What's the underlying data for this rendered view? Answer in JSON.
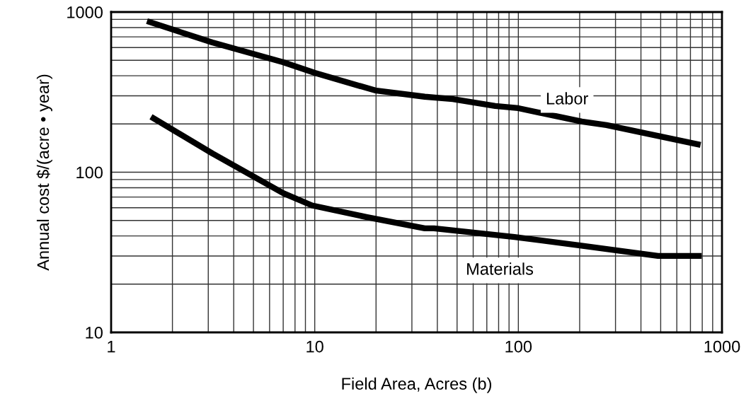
{
  "chart_data": {
    "type": "line",
    "xlabel": "Field Area, Acres (b)",
    "ylabel": "Annual cost $/(acre • year)",
    "log": "xy",
    "grid": true,
    "marker": "none",
    "line_style": "solid",
    "xlim": [
      1,
      1000
    ],
    "xticks": [
      1,
      10,
      100,
      1000
    ],
    "ylim": [
      10,
      1000
    ],
    "yticks": [
      10,
      100,
      1000
    ],
    "series": [
      {
        "name": "Labor",
        "color": "#000000",
        "x": [
          1.5,
          3.14,
          7.0,
          10,
          19.8,
          34.7,
          47.7,
          77,
          100,
          205,
          271,
          785
        ],
        "values": [
          877,
          646,
          486,
          417,
          324,
          296,
          286,
          259,
          251,
          207,
          197,
          148
        ]
      },
      {
        "name": "Materials",
        "color": "#000000",
        "x": [
          1.57,
          3.14,
          7.0,
          9.7,
          17.9,
          34.7,
          38.5,
          95.7,
          201,
          485,
          795
        ],
        "values": [
          222,
          131,
          74,
          62,
          52.5,
          44.6,
          44.6,
          39.4,
          34.9,
          30,
          30
        ]
      }
    ],
    "legend": false
  }
}
